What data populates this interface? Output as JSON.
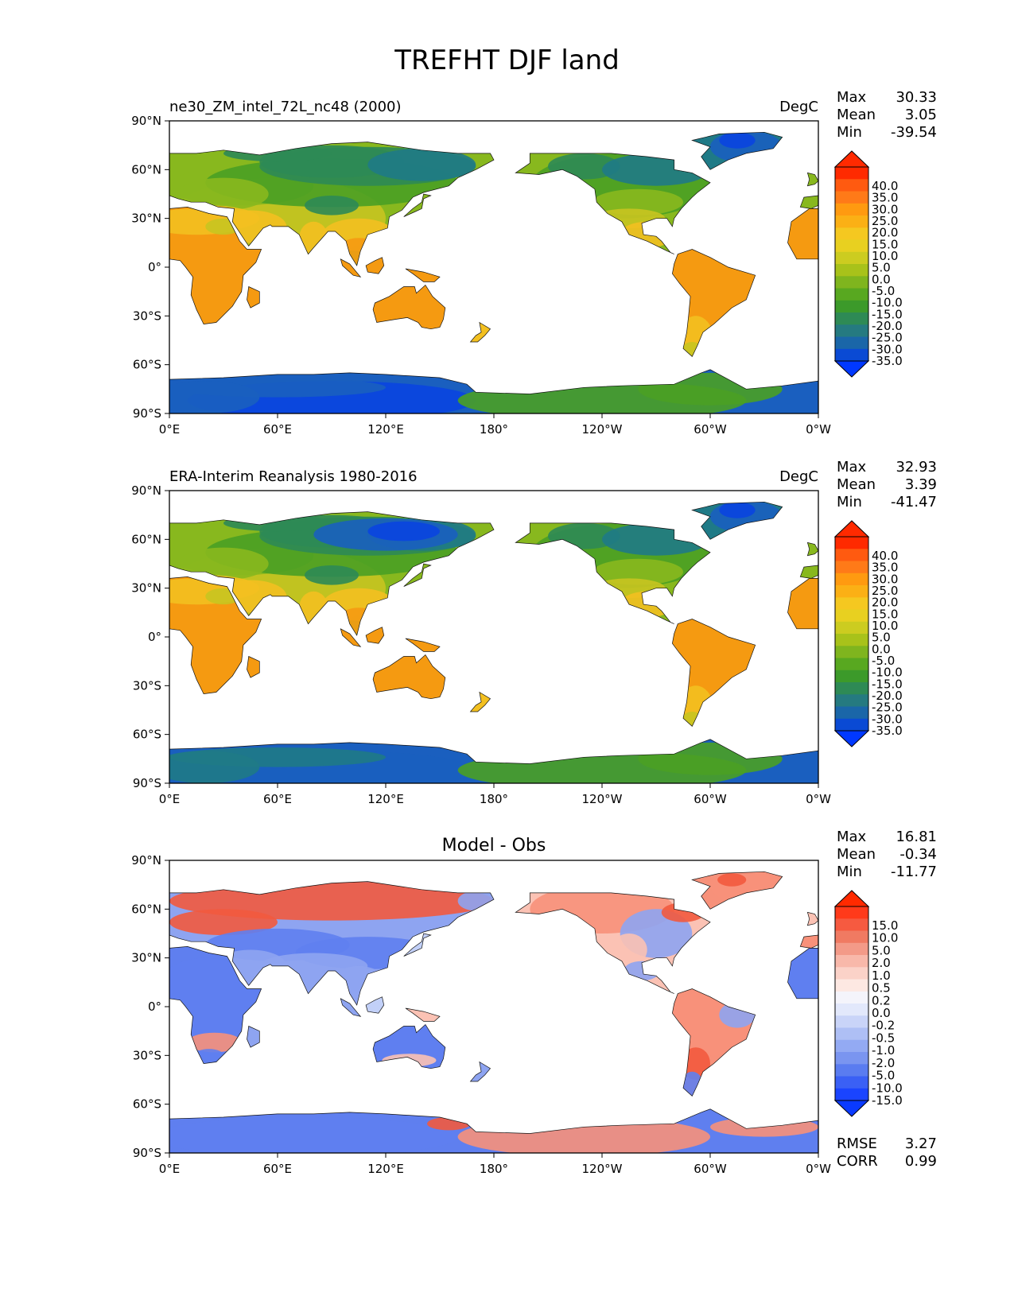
{
  "figure_title": "TREFHT DJF land",
  "lat_ticks": [
    "90°N",
    "60°N",
    "30°N",
    "0°",
    "30°S",
    "60°S",
    "90°S"
  ],
  "lon_ticks": [
    "0°E",
    "60°E",
    "120°E",
    "180°",
    "120°W",
    "60°W",
    "0°W"
  ],
  "panels": [
    {
      "title_left": "ne30_ZM_intel_72L_nc48 (2000)",
      "title_center": "",
      "units": "DegC",
      "stats": [
        {
          "label": "Max",
          "value": "30.33"
        },
        {
          "label": "Mean",
          "value": "3.05"
        },
        {
          "label": "Min",
          "value": "-39.54"
        }
      ],
      "colorbar": {
        "labels": [
          "40.0",
          "35.0",
          "30.0",
          "25.0",
          "20.0",
          "15.0",
          "10.0",
          "5.0",
          "0.0",
          "-5.0",
          "-10.0",
          "-15.0",
          "-20.0",
          "-25.0",
          "-30.0",
          "-35.0"
        ],
        "colors": [
          "#ff2a00",
          "#ff5a10",
          "#ff7a18",
          "#ff9a10",
          "#fbb015",
          "#f5c820",
          "#e8d020",
          "#cccc20",
          "#a8c21a",
          "#7fb51e",
          "#58a820",
          "#3c9a2a",
          "#2e8a55",
          "#257a80",
          "#1a66a8",
          "#0a4ad4"
        ],
        "extend_max_color": "#ff2a00",
        "extend_min_color": "#0038ff"
      },
      "extra_stats": []
    },
    {
      "title_left": "ERA-Interim Reanalysis 1980-2016",
      "title_center": "",
      "units": "DegC",
      "stats": [
        {
          "label": "Max",
          "value": "32.93"
        },
        {
          "label": "Mean",
          "value": "3.39"
        },
        {
          "label": "Min",
          "value": "-41.47"
        }
      ],
      "colorbar": {
        "labels": [
          "40.0",
          "35.0",
          "30.0",
          "25.0",
          "20.0",
          "15.0",
          "10.0",
          "5.0",
          "0.0",
          "-5.0",
          "-10.0",
          "-15.0",
          "-20.0",
          "-25.0",
          "-30.0",
          "-35.0"
        ],
        "colors": [
          "#ff2a00",
          "#ff5a10",
          "#ff7a18",
          "#ff9a10",
          "#fbb015",
          "#f5c820",
          "#e8d020",
          "#cccc20",
          "#a8c21a",
          "#7fb51e",
          "#58a820",
          "#3c9a2a",
          "#2e8a55",
          "#257a80",
          "#1a66a8",
          "#0a4ad4"
        ],
        "extend_max_color": "#ff2a00",
        "extend_min_color": "#0038ff"
      },
      "extra_stats": []
    },
    {
      "title_left": "",
      "title_center": "Model - Obs",
      "units": "",
      "stats": [
        {
          "label": "Max",
          "value": "16.81"
        },
        {
          "label": "Mean",
          "value": "-0.34"
        },
        {
          "label": "Min",
          "value": "-11.77"
        }
      ],
      "colorbar": {
        "labels": [
          "15.0",
          "10.0",
          "5.0",
          "2.0",
          "1.0",
          "0.5",
          "0.2",
          "0.0",
          "-0.2",
          "-0.5",
          "-1.0",
          "-2.0",
          "-5.0",
          "-10.0",
          "-15.0"
        ],
        "colors": [
          "#ff3a1a",
          "#f65a40",
          "#f07a62",
          "#f39a88",
          "#f8b8aa",
          "#fbd2c8",
          "#fde8e2",
          "#f4f4fb",
          "#e2e8fb",
          "#c9d4f8",
          "#aebff5",
          "#93aaf3",
          "#7a95f0",
          "#5a7cf0",
          "#3a60f5",
          "#1a44ff"
        ],
        "extend_max_color": "#ff2a00",
        "extend_min_color": "#0a3aff"
      },
      "extra_stats": [
        {
          "label": "RMSE",
          "value": "3.27"
        },
        {
          "label": "CORR",
          "value": "0.99"
        }
      ]
    }
  ],
  "chart_data": [
    {
      "type": "heatmap",
      "title": "ne30_ZM_intel_72L_nc48 (2000)",
      "variable": "TREFHT",
      "season": "DJF",
      "units": "DegC",
      "x_range": [
        0,
        360
      ],
      "y_range": [
        -90,
        90
      ],
      "max": 30.33,
      "mean": 3.05,
      "min": -39.54,
      "levels": [
        -35,
        -30,
        -25,
        -20,
        -15,
        -10,
        -5,
        0,
        5,
        10,
        15,
        20,
        25,
        30,
        35,
        40
      ]
    },
    {
      "type": "heatmap",
      "title": "ERA-Interim Reanalysis 1980-2016",
      "variable": "TREFHT",
      "season": "DJF",
      "units": "DegC",
      "x_range": [
        0,
        360
      ],
      "y_range": [
        -90,
        90
      ],
      "max": 32.93,
      "mean": 3.39,
      "min": -41.47,
      "levels": [
        -35,
        -30,
        -25,
        -20,
        -15,
        -10,
        -5,
        0,
        5,
        10,
        15,
        20,
        25,
        30,
        35,
        40
      ]
    },
    {
      "type": "heatmap",
      "title": "Model - Obs",
      "x_range": [
        0,
        360
      ],
      "y_range": [
        -90,
        90
      ],
      "max": 16.81,
      "mean": -0.34,
      "min": -11.77,
      "rmse": 3.27,
      "corr": 0.99,
      "levels": [
        -15,
        -10,
        -5,
        -2,
        -1,
        -0.5,
        -0.2,
        0,
        0.2,
        0.5,
        1,
        2,
        5,
        10,
        15
      ]
    }
  ]
}
